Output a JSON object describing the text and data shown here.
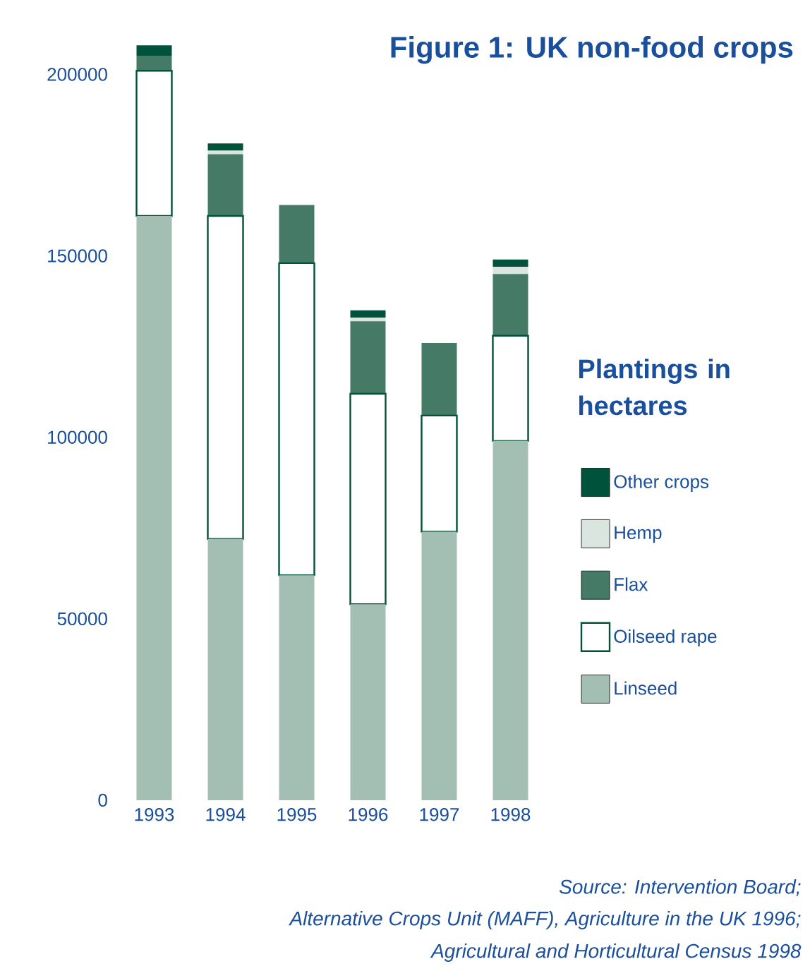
{
  "chart_data": {
    "type": "bar",
    "stacked": true,
    "title": "Figure 1: UK non-food crops",
    "legend_title": "Plantings in hectares",
    "legend": "right",
    "categories": [
      "1993",
      "1994",
      "1995",
      "1996",
      "1997",
      "1998"
    ],
    "series": [
      {
        "name": "Linseed",
        "color": "#a3bfb3",
        "values": [
          161000,
          72000,
          62000,
          54000,
          74000,
          99000
        ]
      },
      {
        "name": "Oilseed rape",
        "color": "#ffffff",
        "values": [
          40000,
          89000,
          86000,
          58000,
          32000,
          29000
        ]
      },
      {
        "name": "Flax",
        "color": "#447a66",
        "values": [
          4000,
          17000,
          16000,
          20000,
          20000,
          17000
        ]
      },
      {
        "name": "Hemp",
        "color": "#dbe5e0",
        "values": [
          0,
          1000,
          0,
          1000,
          0,
          2000
        ]
      },
      {
        "name": "Other crops",
        "color": "#00533a",
        "values": [
          3000,
          2000,
          0,
          2000,
          0,
          2000
        ]
      }
    ],
    "ylim": [
      0,
      210000
    ],
    "yticks": [
      0,
      50000,
      100000,
      150000,
      200000
    ],
    "annotations": [
      "Source: Intervention Board;",
      "Alternative Crops Unit (MAFF), Agriculture in the UK 1996;",
      "Agricultural and Horticultural Census 1998"
    ]
  }
}
